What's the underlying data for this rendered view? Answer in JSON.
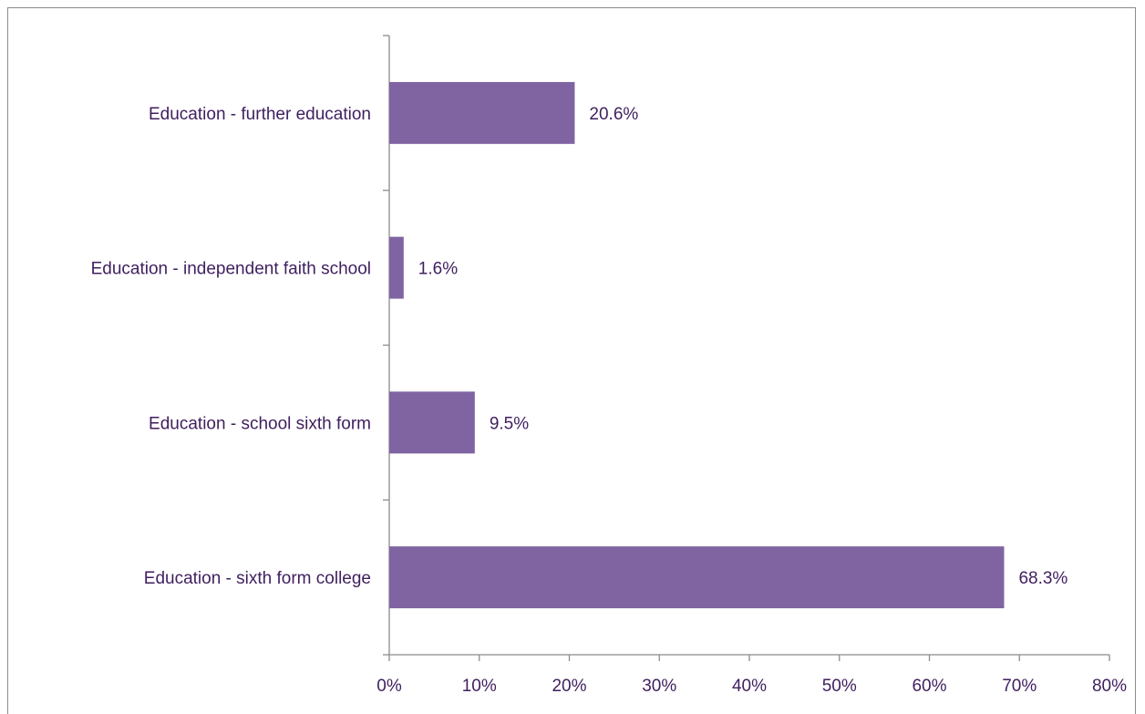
{
  "chart_data": {
    "type": "bar",
    "orientation": "horizontal",
    "title": "",
    "xlabel": "",
    "ylabel": "",
    "categories": [
      "Education - further education",
      "Education - independent faith school",
      "Education - school sixth form",
      "Education - sixth form college"
    ],
    "values": [
      20.6,
      1.6,
      9.5,
      68.3
    ],
    "data_labels": [
      "20.6%",
      "1.6%",
      "9.5%",
      "68.3%"
    ],
    "xlim": [
      0,
      80
    ],
    "x_ticks": [
      0,
      10,
      20,
      30,
      40,
      50,
      60,
      70,
      80
    ],
    "x_tick_labels": [
      "0%",
      "10%",
      "20%",
      "30%",
      "40%",
      "50%",
      "60%",
      "70%",
      "80%"
    ],
    "grid": false,
    "legend": "none",
    "colors": {
      "bar": "#8064a2",
      "text": "#3f1f5f",
      "axis": "#8c8c8c",
      "frame": "#8c8c8c"
    }
  }
}
